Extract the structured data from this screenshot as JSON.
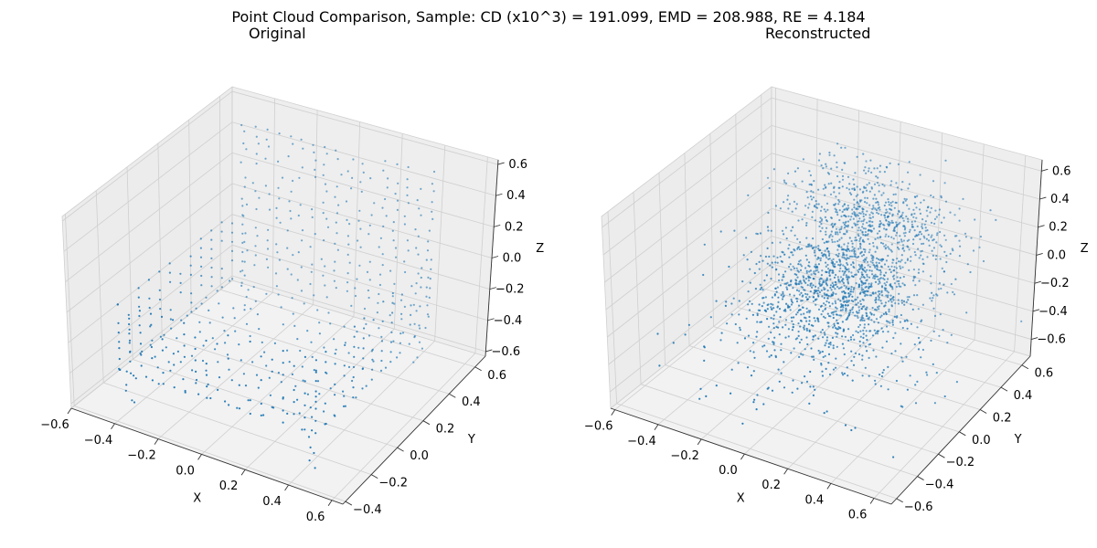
{
  "figure": {
    "title": "Point Cloud Comparison, Sample: CD (x10^3) = 191.099, EMD = 208.988, RE = 4.184"
  },
  "chart_data": [
    {
      "type": "scatter",
      "projection": "3d",
      "title": "Original",
      "xlabel": "X",
      "ylabel": "Y",
      "zlabel": "Z",
      "xlim": [
        -0.6,
        0.65
      ],
      "ylim": [
        -0.42,
        0.68
      ],
      "zlim": [
        -0.63,
        0.63
      ],
      "xticks": [
        "−0.6",
        "−0.4",
        "−0.2",
        "0.0",
        "0.2",
        "0.4",
        "0.6"
      ],
      "yticks": [
        "−0.4",
        "−0.2",
        "0.0",
        "0.2",
        "0.4",
        "0.6"
      ],
      "zticks": [
        "−0.6",
        "−0.4",
        "−0.2",
        "0.0",
        "0.2",
        "0.4",
        "0.6"
      ],
      "grid": true,
      "marker_color": "#1f77b4",
      "shape": "chair (seat, backrest, legs) sampled on a regular lattice",
      "point_count_estimate": 2000
    },
    {
      "type": "scatter",
      "projection": "3d",
      "title": "Reconstructed",
      "xlabel": "X",
      "ylabel": "Y",
      "zlabel": "Z",
      "xlim": [
        -0.62,
        0.68
      ],
      "ylim": [
        -0.65,
        0.68
      ],
      "zlim": [
        -0.72,
        0.68
      ],
      "xticks": [
        "−0.6",
        "−0.4",
        "−0.2",
        "0.0",
        "0.2",
        "0.4",
        "0.6"
      ],
      "yticks": [
        "−0.6",
        "−0.4",
        "−0.2",
        "0.0",
        "0.2",
        "0.4",
        "0.6"
      ],
      "zticks": [
        "−0.6",
        "−0.4",
        "−0.2",
        "0.0",
        "0.2",
        "0.4",
        "0.6"
      ],
      "grid": true,
      "marker_color": "#1f77b4",
      "shape": "noisy chair reconstruction concentrated near the back",
      "point_count_estimate": 2000
    }
  ]
}
